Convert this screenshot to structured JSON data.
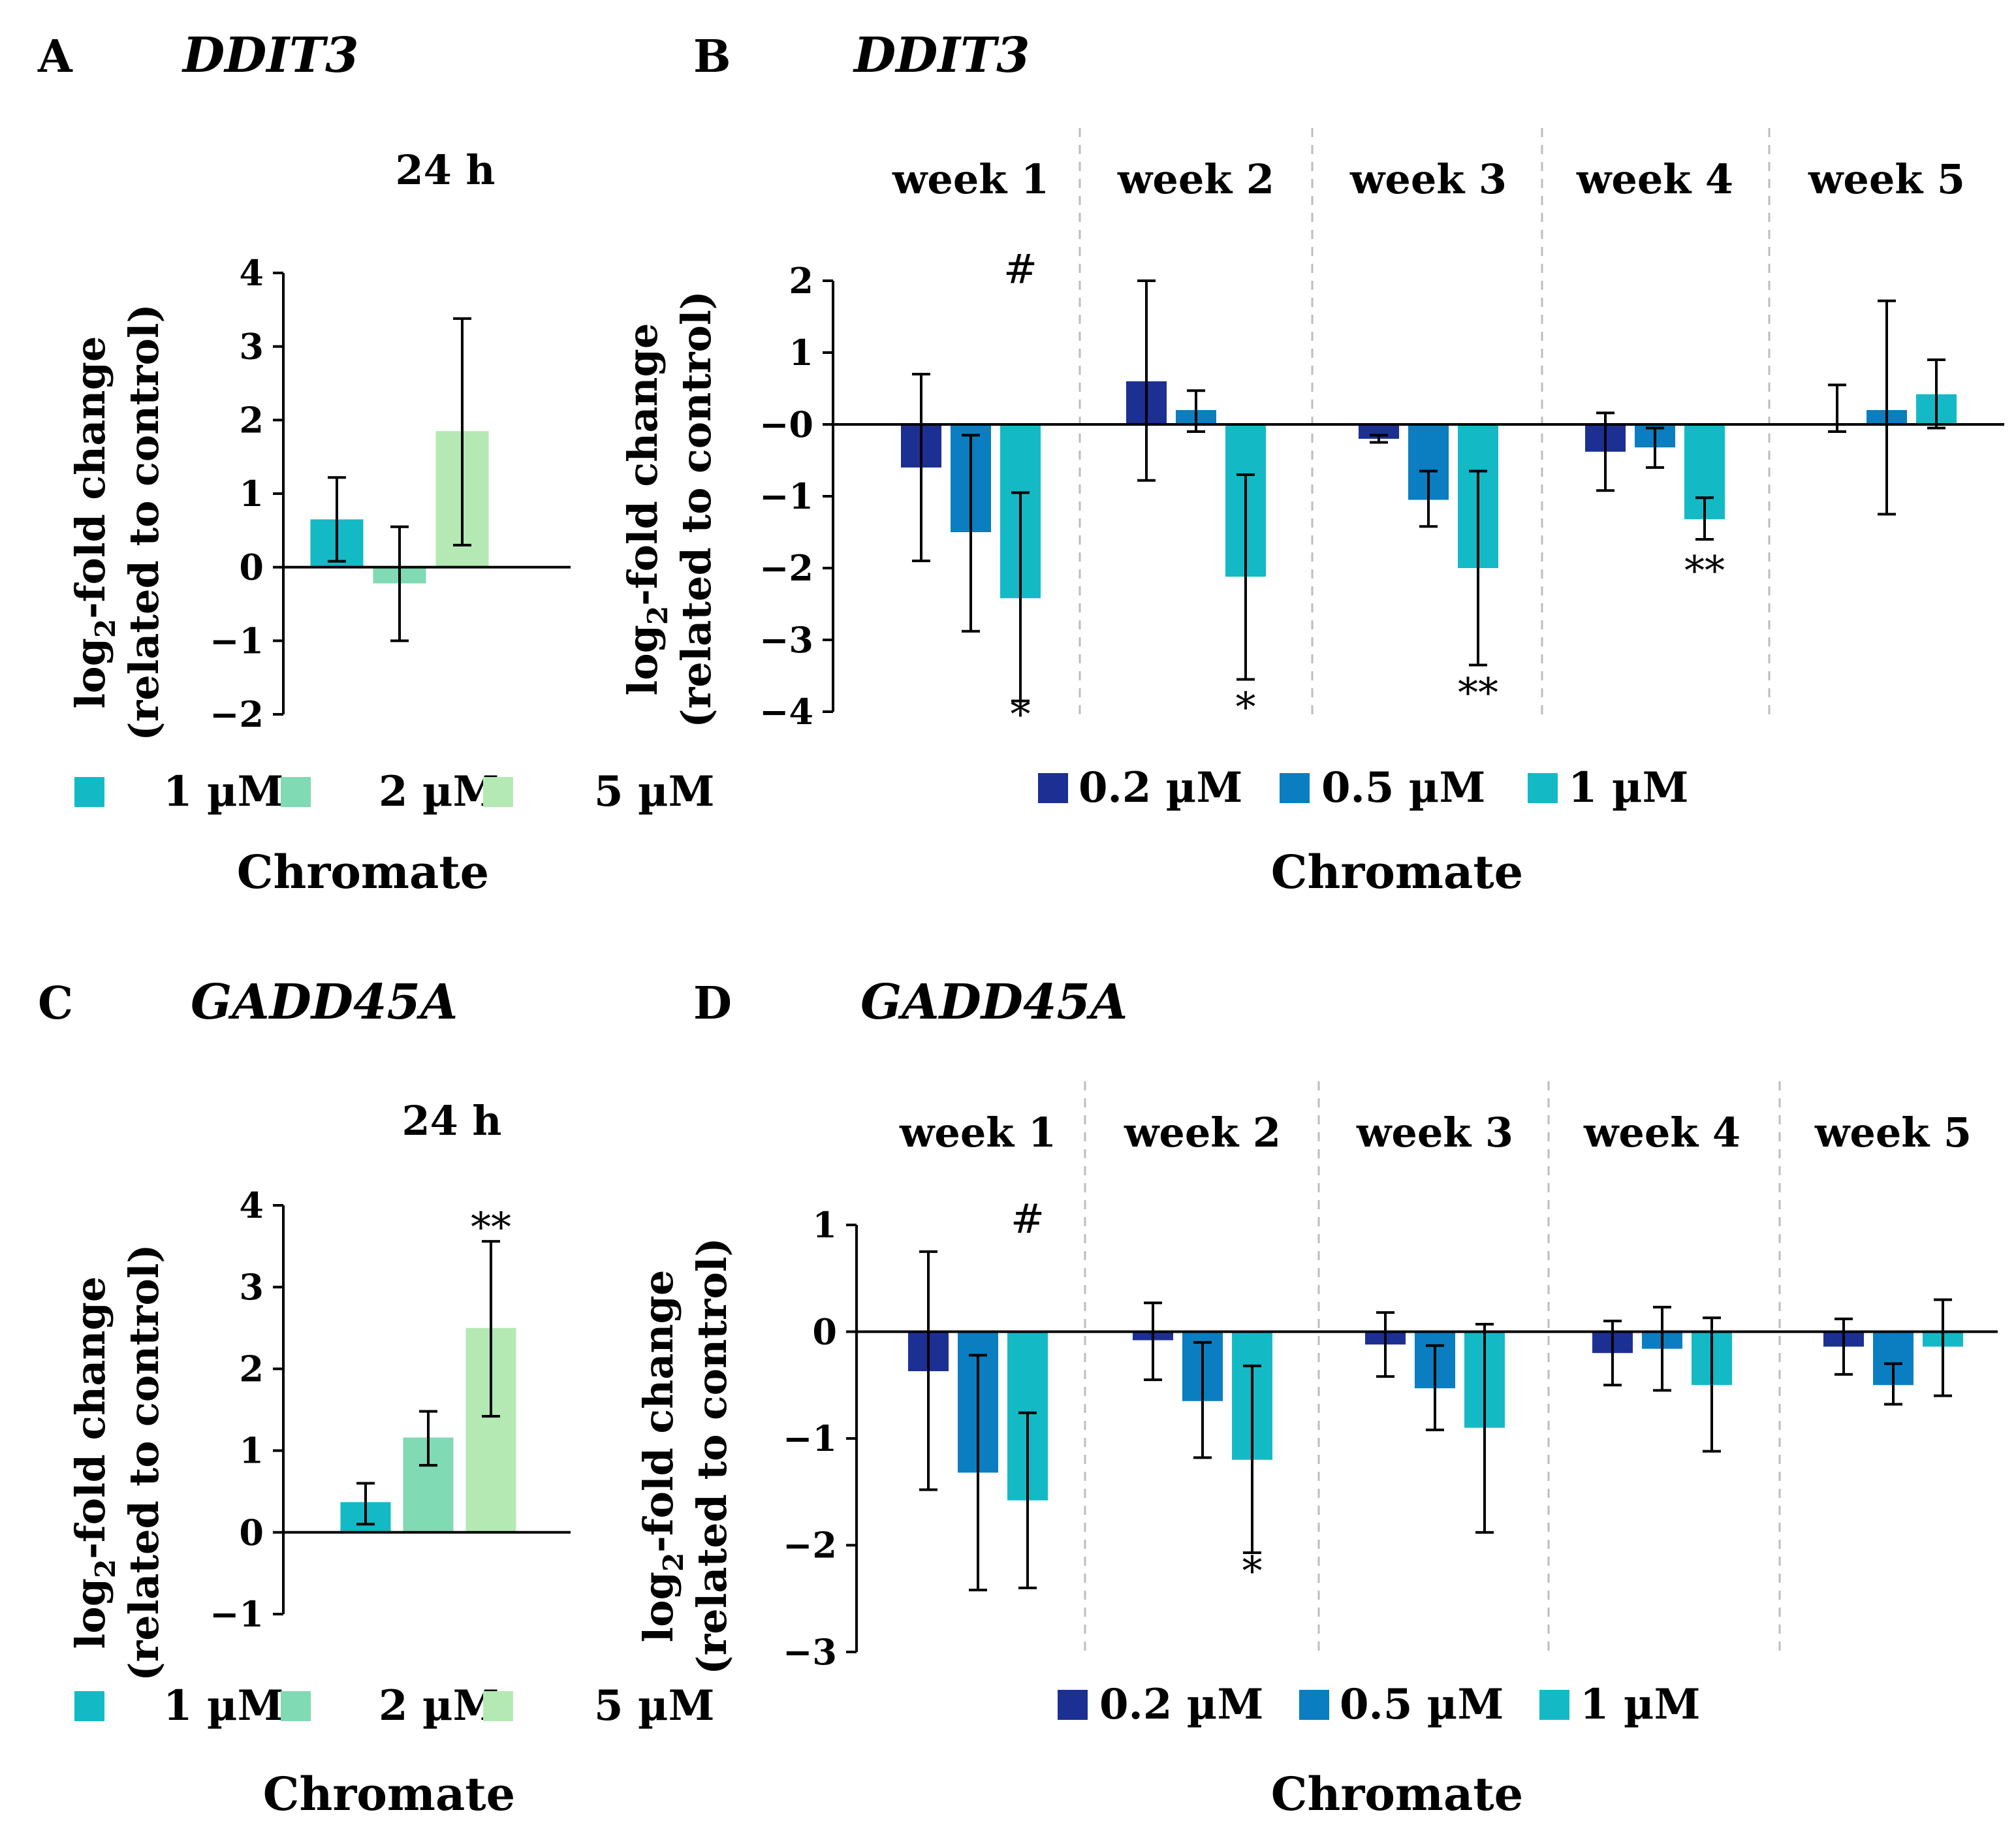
{
  "colors": {
    "c1uM": "#13BAC6",
    "c2uM": "#80DAB4",
    "c5uM": "#B4E9B4",
    "c02uM": "#1C3093",
    "c05uM": "#0A7EC0"
  },
  "chart_data": [
    {
      "id": "A",
      "type": "bar",
      "panel_label": "A",
      "gene": "DDIT3",
      "subtitle": "24 h",
      "ylabel": "log2-fold change (related to control)",
      "ylabel_parts": [
        "log",
        "2",
        "-fold change",
        "(related to control)"
      ],
      "ylim": [
        -2,
        4
      ],
      "yticks": [
        4,
        3,
        2,
        1,
        0,
        -1,
        -2
      ],
      "ytick_labels": [
        "4",
        "3",
        "2",
        "1",
        "0",
        "−1",
        "−2"
      ],
      "categories": [
        "24 h"
      ],
      "series": [
        {
          "name": "1 µM",
          "color": "#13BAC6",
          "values": [
            0.65
          ],
          "err_low": [
            0.08
          ],
          "err_high": [
            1.22
          ]
        },
        {
          "name": "2 µM",
          "color": "#80DAB4",
          "values": [
            -0.22
          ],
          "err_low": [
            -1.0
          ],
          "err_high": [
            0.55
          ]
        },
        {
          "name": "5 µM",
          "color": "#B4E9B4",
          "values": [
            1.85
          ],
          "err_low": [
            0.3
          ],
          "err_high": [
            3.38
          ]
        }
      ],
      "annotations": [],
      "legend": [
        "1 µM",
        "2 µM",
        "5 µM"
      ],
      "xlabel": "Chromate"
    },
    {
      "id": "B",
      "type": "bar",
      "panel_label": "B",
      "gene": "DDIT3",
      "ylabel": "log2-fold change (related to control)",
      "ylabel_parts": [
        "log",
        "2",
        "-fold change",
        "(related to control)"
      ],
      "ylim": [
        -4,
        2
      ],
      "yticks": [
        2,
        1,
        0,
        -1,
        -2,
        -3,
        -4
      ],
      "ytick_labels": [
        "2",
        "1",
        "−0",
        "−1",
        "−2",
        "−3",
        "−4"
      ],
      "categories": [
        "week 1",
        "week 2",
        "week 3",
        "week 4",
        "week 5"
      ],
      "series": [
        {
          "name": "0.2 µM",
          "color": "#1C3093",
          "values": [
            -0.6,
            0.6,
            -0.2,
            -0.38,
            null
          ],
          "err_low": [
            -1.9,
            -0.78,
            -0.25,
            -0.92,
            -0.1
          ],
          "err_high": [
            0.7,
            2.0,
            -0.15,
            0.16,
            0.55
          ]
        },
        {
          "name": "0.5 µM",
          "color": "#0A7EC0",
          "values": [
            -1.5,
            0.2,
            -1.05,
            -0.32,
            0.2
          ],
          "err_low": [
            -2.88,
            -0.1,
            -1.42,
            -0.6,
            -1.25
          ],
          "err_high": [
            -0.15,
            0.47,
            -0.65,
            -0.05,
            1.72
          ]
        },
        {
          "name": "1 µM",
          "color": "#13BAC6",
          "values": [
            -2.42,
            -2.12,
            -2.0,
            -1.32,
            0.42
          ],
          "err_low": [
            -3.85,
            -3.55,
            -3.35,
            -1.6,
            -0.05
          ],
          "err_high": [
            -0.95,
            -0.7,
            -0.65,
            -1.02,
            0.9
          ]
        }
      ],
      "annotations": [
        {
          "text": "#",
          "category": "week 1",
          "series": "1 µM",
          "y": 2.15
        },
        {
          "text": "*",
          "category": "week 1",
          "series": "1 µM",
          "y": -4.05
        },
        {
          "text": "*",
          "category": "week 2",
          "series": "1 µM",
          "y": -3.95
        },
        {
          "text": "**",
          "category": "week 3",
          "series": "1 µM",
          "y": -3.75
        },
        {
          "text": "**",
          "category": "week 4",
          "series": "1 µM",
          "y": -2.05
        }
      ],
      "legend": [
        "0.2 µM",
        "0.5 µM",
        "1 µM"
      ],
      "xlabel": "Chromate"
    },
    {
      "id": "C",
      "type": "bar",
      "panel_label": "C",
      "gene": "GADD45A",
      "subtitle": "24 h",
      "ylabel": "log2-fold change (related to control)",
      "ylabel_parts": [
        "log",
        "2",
        "-fold change",
        "(related to control)"
      ],
      "ylim": [
        -1,
        4
      ],
      "yticks": [
        4,
        3,
        2,
        1,
        0,
        -1
      ],
      "ytick_labels": [
        "4",
        "3",
        "2",
        "1",
        "0",
        "−1"
      ],
      "categories": [
        "24 h"
      ],
      "series": [
        {
          "name": "1 µM",
          "color": "#13BAC6",
          "values": [
            0.37
          ],
          "err_low": [
            0.1
          ],
          "err_high": [
            0.6
          ]
        },
        {
          "name": "2 µM",
          "color": "#80DAB4",
          "values": [
            1.16
          ],
          "err_low": [
            0.82
          ],
          "err_high": [
            1.48
          ]
        },
        {
          "name": "5 µM",
          "color": "#B4E9B4",
          "values": [
            2.5
          ],
          "err_low": [
            1.42
          ],
          "err_high": [
            3.56
          ]
        }
      ],
      "annotations": [
        {
          "text": "**",
          "category": "24 h",
          "series": "5 µM",
          "y": 3.72
        }
      ],
      "legend": [
        "1 µM",
        "2 µM",
        "5 µM"
      ],
      "xlabel": "Chromate"
    },
    {
      "id": "D",
      "type": "bar",
      "panel_label": "D",
      "gene": "GADD45A",
      "ylabel": "log2-fold change (related to control)",
      "ylabel_parts": [
        "log",
        "2",
        "-fold change",
        "(related to control)"
      ],
      "ylim": [
        -3,
        1
      ],
      "yticks": [
        1,
        0,
        -1,
        -2,
        -3
      ],
      "ytick_labels": [
        "1",
        "0",
        "−1",
        "−2",
        "−3"
      ],
      "categories": [
        "week 1",
        "week 2",
        "week 3",
        "week 4",
        "week 5"
      ],
      "series": [
        {
          "name": "0.2 µM",
          "color": "#1C3093",
          "values": [
            -0.37,
            -0.08,
            -0.12,
            -0.2,
            -0.14
          ],
          "err_low": [
            -1.48,
            -0.45,
            -0.42,
            -0.5,
            -0.4
          ],
          "err_high": [
            0.75,
            0.27,
            0.18,
            0.1,
            0.12
          ]
        },
        {
          "name": "0.5 µM",
          "color": "#0A7EC0",
          "values": [
            -1.32,
            -0.65,
            -0.53,
            -0.16,
            -0.5
          ],
          "err_low": [
            -2.42,
            -1.18,
            -0.92,
            -0.55,
            -0.68
          ],
          "err_high": [
            -0.22,
            -0.1,
            -0.13,
            0.23,
            -0.3
          ]
        },
        {
          "name": "1 µM",
          "color": "#13BAC6",
          "values": [
            -1.58,
            -1.2,
            -0.9,
            -0.5,
            -0.14
          ],
          "err_low": [
            -2.4,
            -2.07,
            -1.88,
            -1.12,
            -0.6
          ],
          "err_high": [
            -0.76,
            -0.32,
            0.07,
            0.13,
            0.3
          ]
        }
      ],
      "annotations": [
        {
          "text": "#",
          "category": "week 1",
          "series": "1 µM",
          "y": 1.05
        },
        {
          "text": "*",
          "category": "week 2",
          "series": "1 µM",
          "y": -2.25
        }
      ],
      "legend": [
        "0.2 µM",
        "0.5 µM",
        "1 µM"
      ],
      "xlabel": "Chromate"
    }
  ]
}
